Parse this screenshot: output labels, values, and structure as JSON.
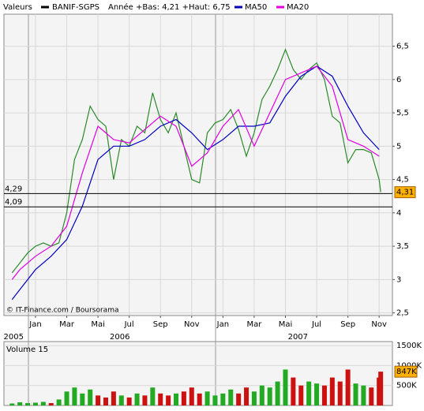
{
  "chart_data": [
    {
      "type": "line",
      "header": {
        "label": "Valeurs",
        "stats": "Année +Bas: 4,21 +Haut: 6,75"
      },
      "source": "© IT-Finance.com / Boursorama",
      "xlim": [
        -2.02,
        22.85
      ],
      "xticks": [
        {
          "value": 0,
          "label": "Jan"
        },
        {
          "value": 2,
          "label": "Mar"
        },
        {
          "value": 4,
          "label": "Mai"
        },
        {
          "value": 6,
          "label": "Jul"
        },
        {
          "value": 8,
          "label": "Sep"
        },
        {
          "value": 10,
          "label": "Nov"
        },
        {
          "value": 12,
          "label": "Jan"
        },
        {
          "value": 14,
          "label": "Mar"
        },
        {
          "value": 16,
          "label": "Mai"
        },
        {
          "value": 18,
          "label": "Jul"
        },
        {
          "value": 20,
          "label": "Sep"
        },
        {
          "value": 22,
          "label": "Nov"
        }
      ],
      "year_ticks": [
        {
          "value": -1.4,
          "label": "2005"
        },
        {
          "value": 5.4,
          "label": "2006"
        },
        {
          "value": 16.8,
          "label": "2007"
        }
      ],
      "ylim": [
        2.46,
        6.98
      ],
      "yticks": [
        {
          "value": 2.5,
          "label": "2,5"
        },
        3,
        {
          "value": 3.5,
          "label": "3,5"
        },
        4,
        {
          "value": 4.5,
          "label": "4,5"
        },
        5,
        {
          "value": 5.5,
          "label": "5,5"
        },
        6,
        {
          "value": 6.5,
          "label": "6,5"
        }
      ],
      "grid": true,
      "levels": [
        {
          "value": 4.29,
          "label": "4,29"
        },
        {
          "value": 4.09,
          "label": "4,09"
        }
      ],
      "last": {
        "value": 4.31,
        "label": "4,31"
      },
      "series": [
        {
          "name": "BANIF-SGPS",
          "color": "#000000",
          "line_color": "#2a8a2a",
          "x": [
            -1.5,
            -1,
            -0.5,
            0,
            0.5,
            1,
            1.5,
            2,
            2.5,
            3,
            3.5,
            4,
            4.5,
            5,
            5.5,
            6,
            6.5,
            7,
            7.5,
            8,
            8.5,
            9,
            9.5,
            10,
            10.5,
            11,
            11.5,
            12,
            12.5,
            13,
            13.5,
            14,
            14.5,
            15,
            15.5,
            16,
            16.5,
            17,
            17.5,
            18,
            18.5,
            19,
            19.5,
            20,
            20.5,
            21,
            21.5,
            22,
            22.1
          ],
          "values": [
            3.1,
            3.25,
            3.4,
            3.5,
            3.55,
            3.5,
            3.55,
            4.0,
            4.8,
            5.1,
            5.6,
            5.4,
            5.3,
            4.5,
            5.1,
            5.0,
            5.3,
            5.2,
            5.8,
            5.4,
            5.2,
            5.5,
            5.0,
            4.5,
            4.45,
            5.2,
            5.35,
            5.4,
            5.55,
            5.25,
            4.85,
            5.2,
            5.7,
            5.9,
            6.15,
            6.45,
            6.15,
            6.0,
            6.15,
            6.25,
            6.0,
            5.45,
            5.35,
            4.75,
            4.95,
            4.95,
            4.9,
            4.5,
            4.31
          ]
        },
        {
          "name": "MA50",
          "color": "#0000c0",
          "x": [
            -1.5,
            -1,
            0,
            1,
            2,
            3,
            4,
            5,
            6,
            7,
            8,
            9,
            10,
            11,
            12,
            13,
            14,
            15,
            16,
            17,
            18,
            19,
            20,
            21,
            22
          ],
          "values": [
            2.7,
            2.85,
            3.15,
            3.35,
            3.6,
            4.1,
            4.8,
            5.0,
            5.0,
            5.1,
            5.3,
            5.4,
            5.2,
            4.95,
            5.1,
            5.3,
            5.3,
            5.35,
            5.75,
            6.05,
            6.2,
            6.05,
            5.6,
            5.2,
            4.95
          ]
        },
        {
          "name": "MA20",
          "color": "#e000e0",
          "x": [
            -1.5,
            -1,
            0,
            1,
            2,
            3,
            4,
            5,
            6,
            7,
            8,
            9,
            10,
            11,
            12,
            13,
            14,
            15,
            16,
            17,
            18,
            19,
            20,
            21,
            22
          ],
          "values": [
            3.0,
            3.15,
            3.35,
            3.5,
            3.8,
            4.6,
            5.3,
            5.1,
            5.05,
            5.25,
            5.45,
            5.3,
            4.7,
            4.9,
            5.3,
            5.55,
            5.0,
            5.5,
            6.0,
            6.1,
            6.2,
            5.9,
            5.1,
            5.0,
            4.85
          ]
        }
      ]
    },
    {
      "type": "bar",
      "title": "Volume 15",
      "xlim": [
        -2.02,
        22.85
      ],
      "ylim": [
        0,
        1600000
      ],
      "yticks": [
        {
          "value": 500000,
          "label": "500K"
        },
        {
          "value": 1000000,
          "label": "1000K"
        },
        {
          "value": 1500000,
          "label": "1500K"
        }
      ],
      "colors": {
        "up": "#22aa22",
        "down": "#cc1111"
      },
      "last": {
        "value": 847000,
        "label": "847K"
      },
      "x": [
        -1.5,
        -1,
        -0.5,
        0,
        0.5,
        1,
        1.5,
        2,
        2.5,
        3,
        3.5,
        4,
        4.5,
        5,
        5.5,
        6,
        6.5,
        7,
        7.5,
        8,
        8.5,
        9,
        9.5,
        10,
        10.5,
        11,
        11.5,
        12,
        12.5,
        13,
        13.5,
        14,
        14.5,
        15,
        15.5,
        16,
        16.5,
        17,
        17.5,
        18,
        18.5,
        19,
        19.5,
        20,
        20.5,
        21,
        21.5,
        22,
        22.1
      ],
      "values": [
        50000,
        80000,
        60000,
        70000,
        90000,
        60000,
        150000,
        350000,
        450000,
        300000,
        400000,
        250000,
        200000,
        350000,
        250000,
        200000,
        300000,
        250000,
        450000,
        300000,
        250000,
        300000,
        350000,
        450000,
        300000,
        350000,
        250000,
        300000,
        400000,
        300000,
        450000,
        350000,
        500000,
        450000,
        600000,
        900000,
        700000,
        500000,
        600000,
        550000,
        500000,
        700000,
        600000,
        900000,
        550000,
        500000,
        450000,
        700000,
        847000
      ]
    }
  ]
}
